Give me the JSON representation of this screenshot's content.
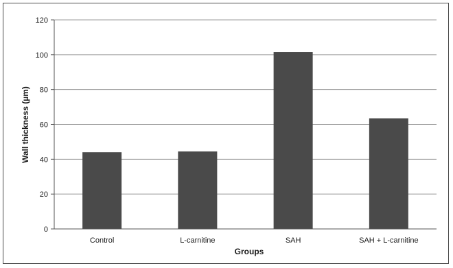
{
  "chart_data": {
    "type": "bar",
    "categories": [
      "Control",
      "L-carnitine",
      "SAH",
      "SAH + L-carnitine"
    ],
    "values": [
      44,
      44.5,
      101.5,
      63.5
    ],
    "xlabel": "Groups",
    "ylabel": "Wall thickness (µm)",
    "ylim": [
      0,
      120
    ],
    "yticks": [
      0,
      20,
      40,
      60,
      80,
      100,
      120
    ],
    "grid": true,
    "legend": "none",
    "bar_color": "#4a4a4a",
    "grid_color": "#9a9a9a"
  }
}
